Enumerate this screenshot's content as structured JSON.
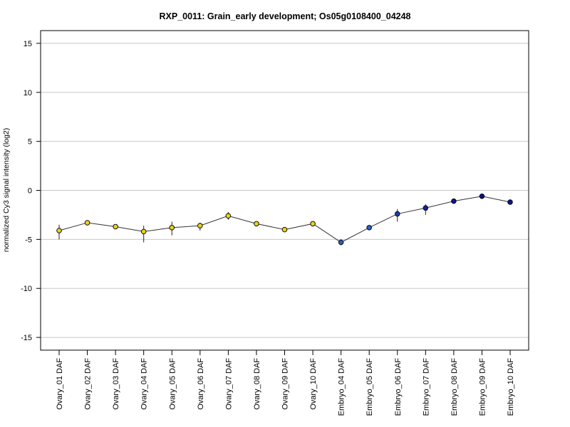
{
  "chart_data": {
    "type": "line",
    "title": "RXP_0011: Grain_early development; Os05g0108400_04248",
    "ylabel": "normalized Cy3 signal intensity (log2)",
    "xlabel": "",
    "ylim": [
      -16.3,
      16.3
    ],
    "yticks": [
      -15,
      -10,
      -5,
      0,
      5,
      10,
      15
    ],
    "grid": "horizontal",
    "categories": [
      "Ovary_01 DAF",
      "Ovary_02 DAF",
      "Ovary_03 DAF",
      "Ovary_04 DAF",
      "Ovary_05 DAF",
      "Ovary_06 DAF",
      "Ovary_07 DAF",
      "Ovary_08 DAF",
      "Ovary_09 DAF",
      "Ovary_10 DAF",
      "Embryo_04 DAF",
      "Embryo_05 DAF",
      "Embryo_06 DAF",
      "Embryo_07 DAF",
      "Embryo_08 DAF",
      "Embryo_09 DAF",
      "Embryo_10 DAF"
    ],
    "values": [
      -4.1,
      -3.3,
      -3.7,
      -4.2,
      -3.8,
      -3.6,
      -2.6,
      -3.4,
      -4.0,
      -3.4,
      -5.3,
      -3.8,
      -2.4,
      -1.8,
      -1.1,
      -0.6,
      -1.2
    ],
    "error_low": [
      -5.0,
      -3.5,
      -3.9,
      -5.3,
      -4.6,
      -4.1,
      -3.0,
      -3.6,
      -4.1,
      -3.6,
      -5.6,
      -4.0,
      -3.2,
      -2.5,
      -1.2,
      -0.7,
      -1.3
    ],
    "error_high": [
      -3.5,
      -3.1,
      -3.5,
      -3.6,
      -3.2,
      -3.3,
      -2.2,
      -3.2,
      -3.9,
      -3.2,
      -5.0,
      -3.6,
      -1.9,
      -1.4,
      -1.0,
      -0.5,
      -1.1
    ],
    "point_colors": [
      "#e8d21d",
      "#e8d21d",
      "#e8d21d",
      "#e8d21d",
      "#e8d21d",
      "#e8d21d",
      "#e8d21d",
      "#e8d21d",
      "#e8d21d",
      "#e8d21d",
      "#2a5fc4",
      "#2a5fc4",
      "#1e3fa8",
      "#13259a",
      "#0b1890",
      "#06108a",
      "#0a168e"
    ]
  }
}
